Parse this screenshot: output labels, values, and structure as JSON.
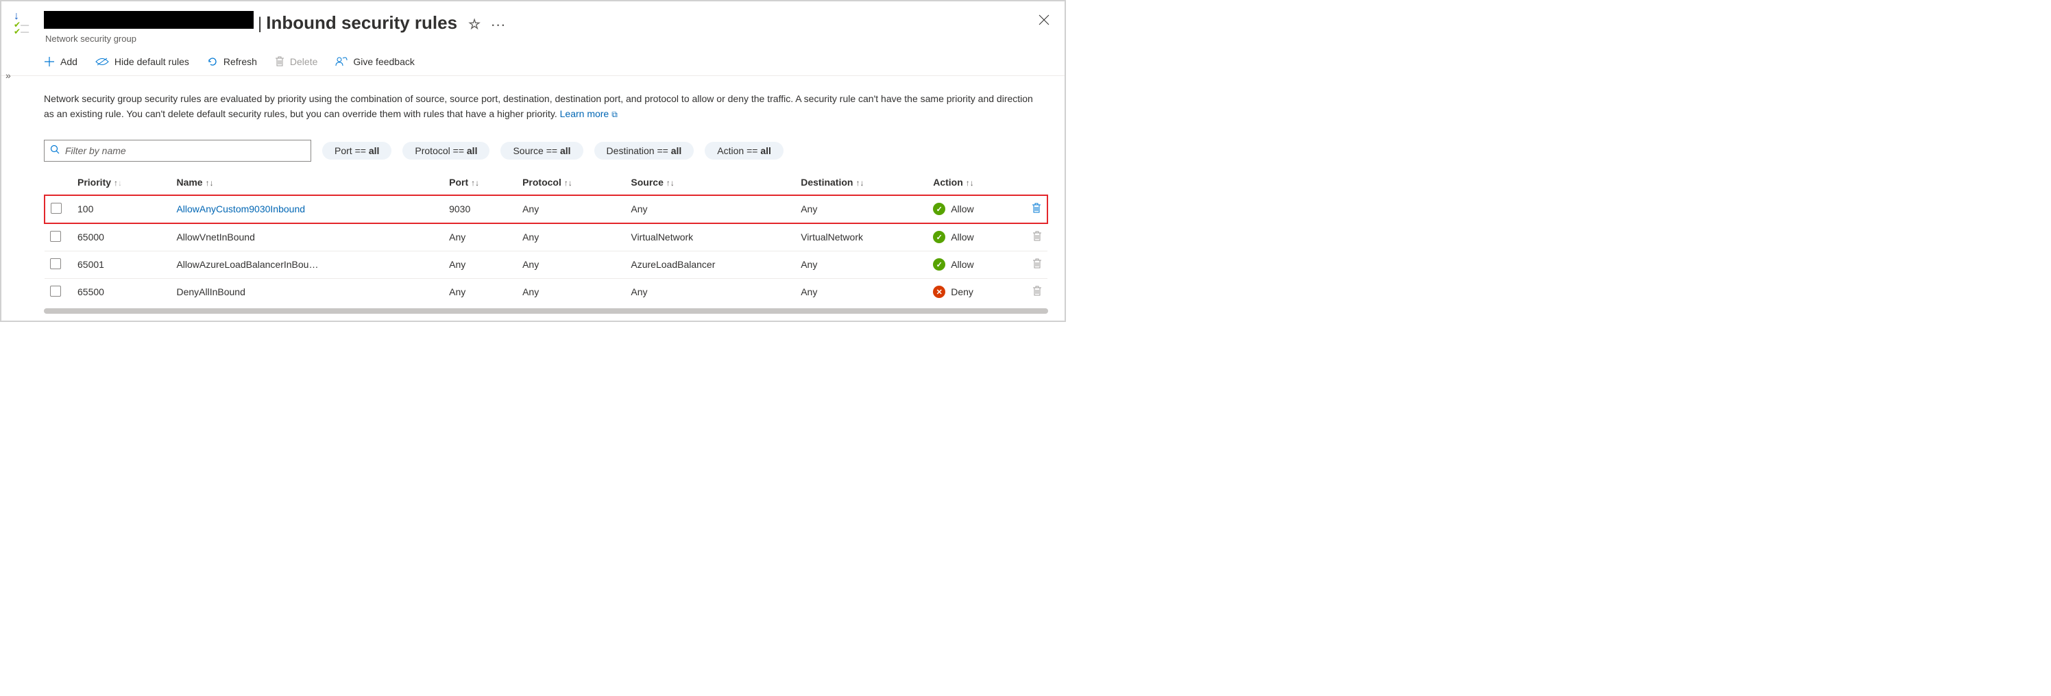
{
  "header": {
    "page_title": "Inbound security rules",
    "subtitle": "Network security group"
  },
  "toolbar": {
    "add": "Add",
    "hide_default": "Hide default rules",
    "refresh": "Refresh",
    "delete": "Delete",
    "feedback": "Give feedback"
  },
  "description": {
    "text": "Network security group security rules are evaluated by priority using the combination of source, source port, destination, destination port, and protocol to allow or deny the traffic. A security rule can't have the same priority and direction as an existing rule. You can't delete default security rules, but you can override them with rules that have a higher priority.",
    "learn_more": "Learn more"
  },
  "search": {
    "placeholder": "Filter by name"
  },
  "pills": {
    "port": {
      "label": "Port == ",
      "value": "all"
    },
    "protocol": {
      "label": "Protocol == ",
      "value": "all"
    },
    "source": {
      "label": "Source == ",
      "value": "all"
    },
    "destination": {
      "label": "Destination == ",
      "value": "all"
    },
    "action": {
      "label": "Action == ",
      "value": "all"
    }
  },
  "columns": {
    "priority": "Priority",
    "name": "Name",
    "port": "Port",
    "protocol": "Protocol",
    "source": "Source",
    "destination": "Destination",
    "action": "Action"
  },
  "rows": [
    {
      "priority": "100",
      "name": "AllowAnyCustom9030Inbound",
      "name_link": true,
      "port": "9030",
      "protocol": "Any",
      "source": "Any",
      "destination": "Any",
      "action": "Allow",
      "highlight": true,
      "trash_active": true
    },
    {
      "priority": "65000",
      "name": "AllowVnetInBound",
      "name_link": false,
      "port": "Any",
      "protocol": "Any",
      "source": "VirtualNetwork",
      "destination": "VirtualNetwork",
      "action": "Allow",
      "highlight": false,
      "trash_active": false
    },
    {
      "priority": "65001",
      "name": "AllowAzureLoadBalancerInBou…",
      "name_link": false,
      "port": "Any",
      "protocol": "Any",
      "source": "AzureLoadBalancer",
      "destination": "Any",
      "action": "Allow",
      "highlight": false,
      "trash_active": false
    },
    {
      "priority": "65500",
      "name": "DenyAllInBound",
      "name_link": false,
      "port": "Any",
      "protocol": "Any",
      "source": "Any",
      "destination": "Any",
      "action": "Deny",
      "highlight": false,
      "trash_active": false
    }
  ],
  "colors": {
    "highlight_border": "#e3262b",
    "link": "#0066b4",
    "allow_badge": "#57a300",
    "deny_badge": "#d83b01",
    "accent": "#0078d4"
  }
}
